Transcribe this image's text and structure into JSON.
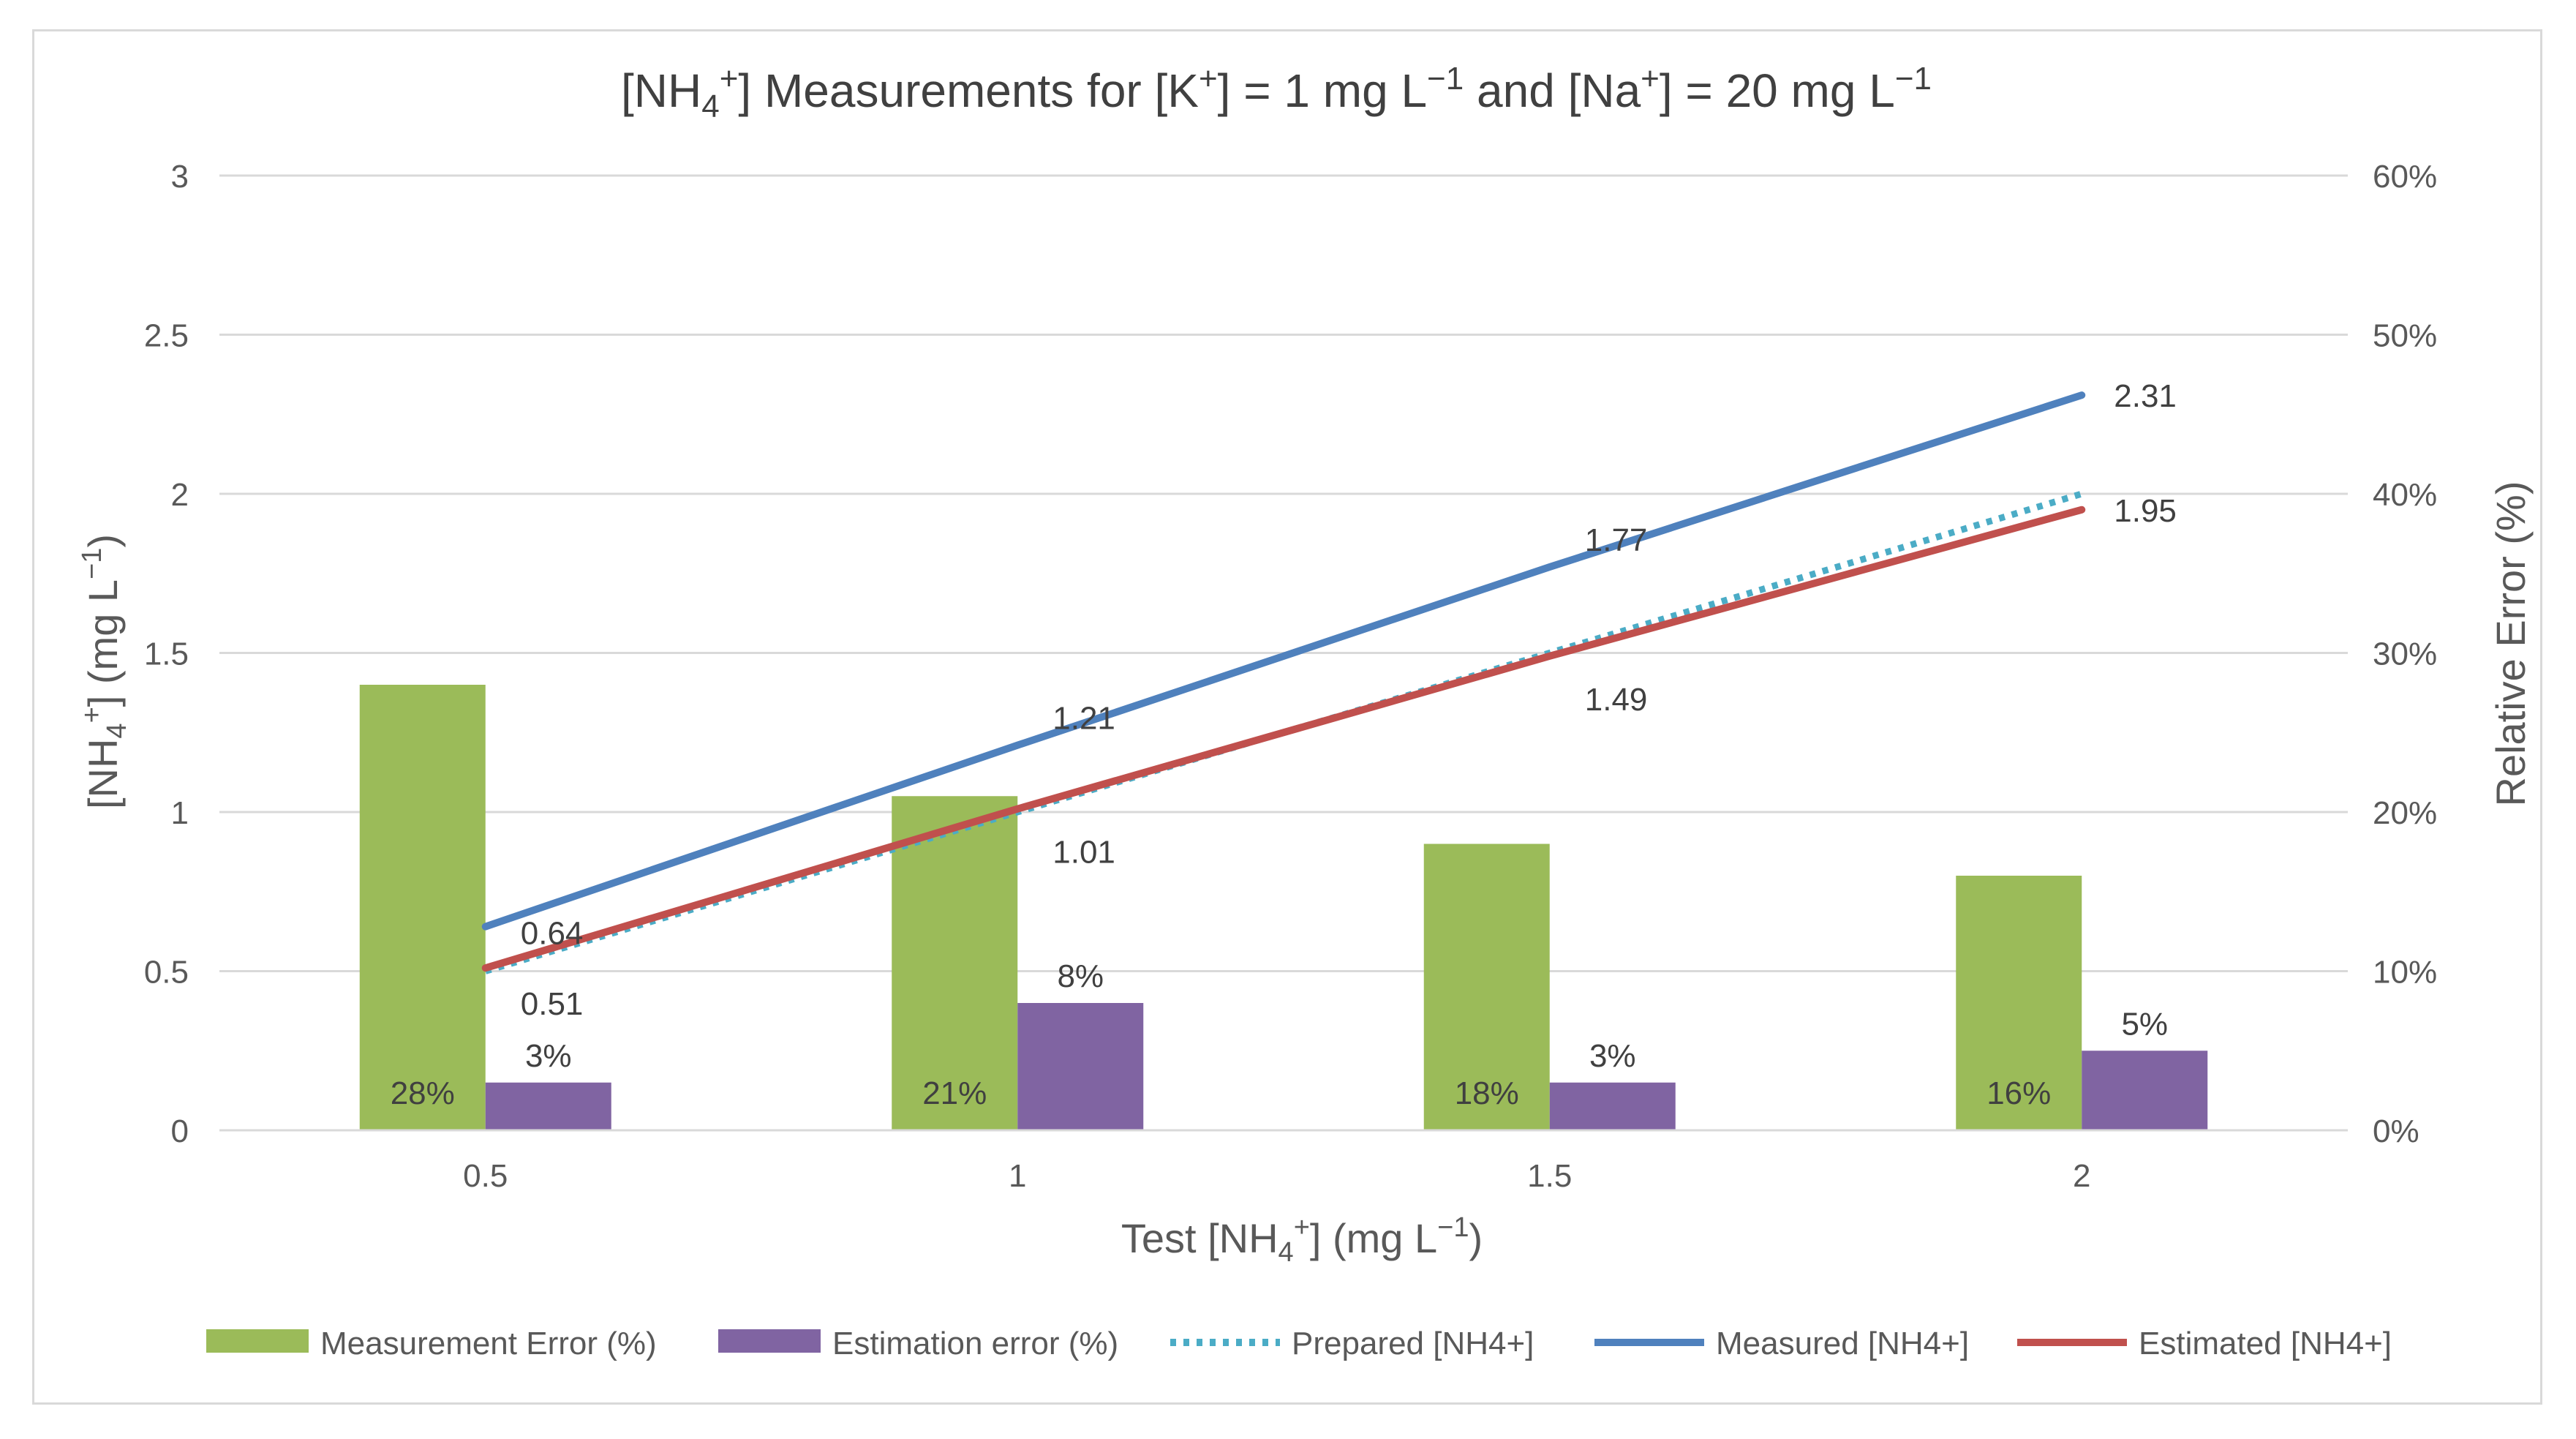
{
  "chart_data": {
    "type": "bar+line",
    "title": {
      "prefix": "[NH",
      "sub": "4",
      "sup_plus": "+",
      "mid1": "] Measurements for [K",
      "sup_k": "+",
      "mid2": "] = 1 mg L",
      "sup_unit1": "−1",
      "mid3": " and [Na",
      "sup_na": "+",
      "mid4": "] = 20 mg L",
      "sup_unit2": "−1"
    },
    "xlabel": {
      "prefix": "Test [NH",
      "sub": "4",
      "sup_plus": "+",
      "mid": "] (mg L",
      "sup_unit": "−1",
      "suffix": ")"
    },
    "ylabel_left": {
      "prefix": "[NH",
      "sub": "4",
      "sup_plus": "+",
      "mid": "] (mg L",
      "sup_unit": "−1",
      "suffix": ")"
    },
    "ylabel_right": "Relative Error (%)",
    "categories": [
      "0.5",
      "1",
      "1.5",
      "2"
    ],
    "x_values": [
      0.5,
      1,
      1.5,
      2
    ],
    "ylim_left": [
      0,
      3
    ],
    "yticks_left": [
      "0",
      "0.5",
      "1",
      "1.5",
      "2",
      "2.5",
      "3"
    ],
    "ylim_right": [
      0,
      60
    ],
    "yticks_right": [
      "0%",
      "10%",
      "20%",
      "30%",
      "40%",
      "50%",
      "60%"
    ],
    "grid": true,
    "legend_position": "bottom",
    "bar_series": [
      {
        "name": "Measurement Error (%)",
        "color": "#9bbb59",
        "values": [
          28,
          21,
          18,
          16
        ],
        "labels": [
          "28%",
          "21%",
          "18%",
          "16%"
        ],
        "label_placement": "inside-base"
      },
      {
        "name": "Estimation error (%)",
        "color": "#8064a2",
        "values": [
          3,
          8,
          3,
          5
        ],
        "labels": [
          "3%",
          "8%",
          "3%",
          "5%"
        ],
        "label_placement": "above"
      }
    ],
    "line_series": [
      {
        "name": "Prepared [NH4+]",
        "color": "#4bacc6",
        "style": "dotted",
        "values": [
          0.5,
          1.0,
          1.5,
          2.0
        ],
        "labels": []
      },
      {
        "name": "Measured [NH4+]",
        "color": "#4f81bd",
        "style": "solid",
        "values": [
          0.64,
          1.21,
          1.77,
          2.31
        ],
        "labels": [
          "0.64",
          "1.21",
          "1.77",
          "2.31"
        ]
      },
      {
        "name": "Estimated [NH4+]",
        "color": "#c0504d",
        "style": "solid",
        "values": [
          0.51,
          1.01,
          1.49,
          1.95
        ],
        "labels": [
          "0.51",
          "1.01",
          "1.49",
          "1.95"
        ]
      }
    ],
    "legend": [
      "Measurement Error (%)",
      "Estimation error (%)",
      "Prepared [NH4+]",
      "Measured [NH4+]",
      "Estimated [NH4+]"
    ]
  }
}
